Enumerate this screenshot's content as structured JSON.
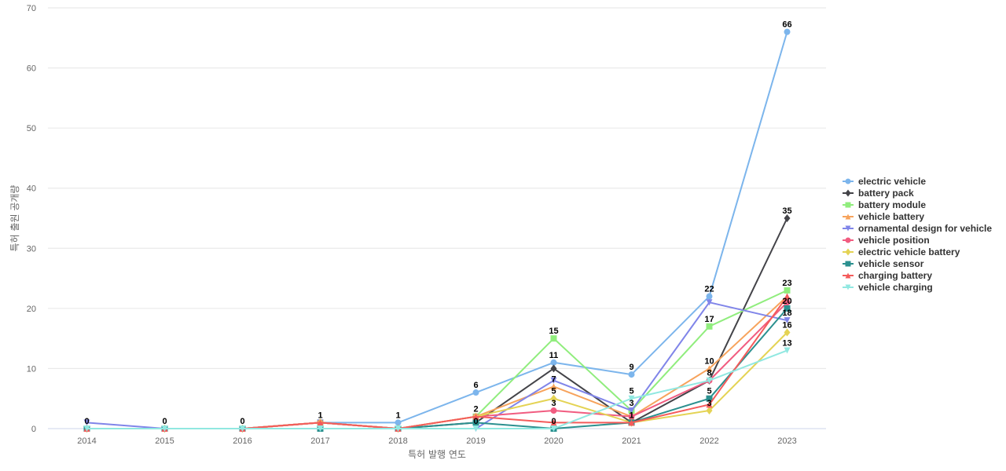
{
  "chart_data": {
    "type": "line",
    "xlabel": "특허 발행 연도",
    "ylabel": "특허 출원 공개량",
    "ylim": [
      0,
      70
    ],
    "yticks": [
      0,
      10,
      20,
      30,
      40,
      50,
      60,
      70
    ],
    "grid": true,
    "legend_position": "right",
    "x": [
      "2014",
      "2015",
      "2016",
      "2017",
      "2018",
      "2019",
      "2020",
      "2021",
      "2022",
      "2023"
    ],
    "series": [
      {
        "name": "electric vehicle",
        "color": "#7cb5ec",
        "marker": "circle",
        "values": [
          0,
          0,
          0,
          1,
          1,
          6,
          11,
          9,
          22,
          66
        ]
      },
      {
        "name": "battery pack",
        "color": "#434348",
        "marker": "diamond",
        "values": [
          0,
          0,
          0,
          1,
          0,
          1,
          10,
          1,
          8,
          35
        ]
      },
      {
        "name": "battery module",
        "color": "#90ed7d",
        "marker": "square",
        "values": [
          0,
          0,
          0,
          1,
          0,
          2,
          15,
          3,
          17,
          23
        ]
      },
      {
        "name": "vehicle battery",
        "color": "#f7a35c",
        "marker": "triangle",
        "values": [
          0,
          0,
          0,
          1,
          0,
          2,
          7,
          2,
          10,
          22
        ]
      },
      {
        "name": "ornamental design for vehicle",
        "color": "#8085e9",
        "marker": "triangle-down",
        "values": [
          1,
          0,
          0,
          1,
          0,
          0,
          8,
          3,
          21,
          18
        ]
      },
      {
        "name": "vehicle position",
        "color": "#f15c80",
        "marker": "circle",
        "values": [
          0,
          0,
          0,
          1,
          0,
          2,
          3,
          2,
          8,
          21
        ]
      },
      {
        "name": "electric vehicle battery",
        "color": "#e4d354",
        "marker": "diamond",
        "values": [
          0,
          0,
          0,
          1,
          0,
          2,
          5,
          1,
          3,
          16
        ]
      },
      {
        "name": "vehicle sensor",
        "color": "#2b908f",
        "marker": "square",
        "values": [
          0,
          0,
          0,
          0,
          0,
          1,
          0,
          1,
          5,
          20
        ]
      },
      {
        "name": "charging battery",
        "color": "#f45b5b",
        "marker": "triangle",
        "values": [
          0,
          0,
          0,
          1,
          0,
          2,
          1,
          1,
          4,
          22
        ]
      },
      {
        "name": "vehicle charging",
        "color": "#91e8e1",
        "marker": "triangle-down",
        "values": [
          0,
          0,
          0,
          0,
          0,
          0,
          0,
          5,
          8,
          13
        ]
      }
    ],
    "data_labels": [
      {
        "x": "2014",
        "text": "0"
      },
      {
        "x": "2015",
        "text": "0"
      },
      {
        "x": "2016",
        "text": "0"
      },
      {
        "x": "2017",
        "text": "1"
      },
      {
        "x": "2018",
        "text": "1"
      },
      {
        "x": "2019",
        "text": "6"
      },
      {
        "x": "2019",
        "text": "2"
      },
      {
        "x": "2019",
        "text": "0"
      },
      {
        "x": "2020",
        "text": "15"
      },
      {
        "x": "2020",
        "text": "11"
      },
      {
        "x": "2020",
        "text": "7"
      },
      {
        "x": "2020",
        "text": "5"
      },
      {
        "x": "2020",
        "text": "3"
      },
      {
        "x": "2020",
        "text": "0"
      },
      {
        "x": "2021",
        "text": "9"
      },
      {
        "x": "2021",
        "text": "5"
      },
      {
        "x": "2021",
        "text": "3"
      },
      {
        "x": "2021",
        "text": "1"
      },
      {
        "x": "2022",
        "text": "22"
      },
      {
        "x": "2022",
        "text": "17"
      },
      {
        "x": "2022",
        "text": "10"
      },
      {
        "x": "2022",
        "text": "8"
      },
      {
        "x": "2022",
        "text": "5"
      },
      {
        "x": "2022",
        "text": "3"
      },
      {
        "x": "2023",
        "text": "66"
      },
      {
        "x": "2023",
        "text": "35"
      },
      {
        "x": "2023",
        "text": "23"
      },
      {
        "x": "2023",
        "text": "20"
      },
      {
        "x": "2023",
        "text": "18"
      },
      {
        "x": "2023",
        "text": "16"
      },
      {
        "x": "2023",
        "text": "13"
      }
    ]
  }
}
